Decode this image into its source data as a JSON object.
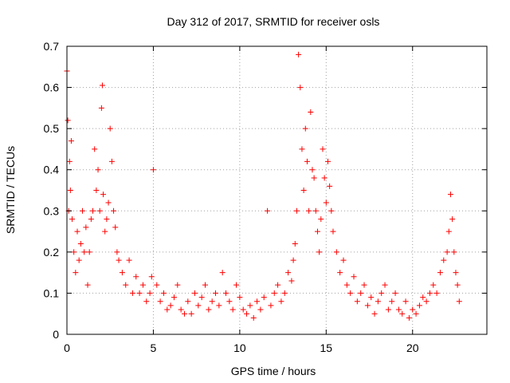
{
  "chart_data": {
    "type": "scatter",
    "title": "Day 312 of 2017, SRMTID for receiver osls",
    "xlabel": "GPS time / hours",
    "ylabel": "SRMTID / TECUs",
    "xlim": [
      0,
      24.3
    ],
    "ylim": [
      0,
      0.7
    ],
    "xticks": [
      0,
      5,
      10,
      15,
      20
    ],
    "yticks": [
      0,
      0.1,
      0.2,
      0.3,
      0.4,
      0.5,
      0.6,
      0.7
    ],
    "xtick_labels": [
      "0",
      "5",
      "10",
      "15",
      "20"
    ],
    "ytick_labels": [
      "0",
      "0.1",
      "0.2",
      "0.3",
      "0.4",
      "0.5",
      "0.6",
      "0.7"
    ],
    "grid": true,
    "marker": "+",
    "marker_color": "#ff0000",
    "series": [
      {
        "name": "SRMTID",
        "x": [
          0.0,
          0.05,
          0.1,
          0.15,
          0.2,
          0.25,
          0.3,
          0.4,
          0.5,
          0.6,
          0.7,
          0.8,
          0.9,
          1.0,
          1.1,
          1.2,
          1.3,
          1.4,
          1.5,
          1.6,
          1.7,
          1.8,
          1.9,
          2.0,
          2.05,
          2.1,
          2.2,
          2.3,
          2.4,
          2.5,
          2.6,
          2.7,
          2.8,
          2.9,
          3.0,
          3.2,
          3.4,
          3.6,
          3.8,
          4.0,
          4.2,
          4.4,
          4.6,
          4.8,
          4.9,
          5.0,
          5.2,
          5.4,
          5.6,
          5.8,
          6.0,
          6.2,
          6.4,
          6.6,
          6.8,
          7.0,
          7.2,
          7.4,
          7.6,
          7.8,
          8.0,
          8.2,
          8.4,
          8.6,
          8.8,
          9.0,
          9.2,
          9.4,
          9.6,
          9.8,
          10.0,
          10.2,
          10.4,
          10.6,
          10.8,
          11.0,
          11.2,
          11.4,
          11.6,
          11.8,
          12.0,
          12.2,
          12.4,
          12.6,
          12.8,
          13.0,
          13.1,
          13.2,
          13.3,
          13.4,
          13.5,
          13.6,
          13.7,
          13.8,
          13.9,
          14.0,
          14.1,
          14.2,
          14.3,
          14.4,
          14.5,
          14.6,
          14.7,
          14.8,
          14.9,
          15.0,
          15.1,
          15.2,
          15.3,
          15.4,
          15.6,
          15.8,
          16.0,
          16.2,
          16.4,
          16.6,
          16.8,
          17.0,
          17.2,
          17.4,
          17.6,
          17.8,
          18.0,
          18.2,
          18.4,
          18.6,
          18.8,
          19.0,
          19.2,
          19.4,
          19.6,
          19.8,
          20.0,
          20.2,
          20.4,
          20.6,
          20.8,
          21.0,
          21.2,
          21.4,
          21.6,
          21.8,
          22.0,
          22.1,
          22.2,
          22.3,
          22.4,
          22.5,
          22.6,
          22.7
        ],
        "y": [
          0.64,
          0.52,
          0.3,
          0.42,
          0.35,
          0.47,
          0.28,
          0.2,
          0.15,
          0.25,
          0.18,
          0.22,
          0.3,
          0.2,
          0.26,
          0.12,
          0.2,
          0.28,
          0.3,
          0.45,
          0.35,
          0.4,
          0.3,
          0.55,
          0.605,
          0.34,
          0.25,
          0.28,
          0.32,
          0.5,
          0.42,
          0.3,
          0.26,
          0.2,
          0.18,
          0.15,
          0.12,
          0.18,
          0.1,
          0.14,
          0.1,
          0.12,
          0.08,
          0.1,
          0.14,
          0.4,
          0.12,
          0.08,
          0.1,
          0.06,
          0.07,
          0.09,
          0.12,
          0.06,
          0.05,
          0.08,
          0.05,
          0.1,
          0.07,
          0.09,
          0.12,
          0.06,
          0.08,
          0.1,
          0.07,
          0.15,
          0.1,
          0.08,
          0.06,
          0.12,
          0.09,
          0.06,
          0.05,
          0.07,
          0.04,
          0.08,
          0.06,
          0.09,
          0.3,
          0.07,
          0.1,
          0.12,
          0.08,
          0.1,
          0.15,
          0.13,
          0.18,
          0.22,
          0.3,
          0.68,
          0.6,
          0.45,
          0.35,
          0.5,
          0.42,
          0.3,
          0.54,
          0.4,
          0.38,
          0.3,
          0.25,
          0.2,
          0.28,
          0.45,
          0.38,
          0.32,
          0.42,
          0.36,
          0.3,
          0.25,
          0.2,
          0.15,
          0.18,
          0.12,
          0.1,
          0.14,
          0.08,
          0.1,
          0.12,
          0.07,
          0.09,
          0.05,
          0.08,
          0.1,
          0.12,
          0.06,
          0.08,
          0.1,
          0.06,
          0.05,
          0.08,
          0.04,
          0.06,
          0.05,
          0.07,
          0.09,
          0.08,
          0.1,
          0.12,
          0.1,
          0.15,
          0.18,
          0.2,
          0.25,
          0.34,
          0.28,
          0.2,
          0.15,
          0.12,
          0.08
        ]
      }
    ]
  }
}
